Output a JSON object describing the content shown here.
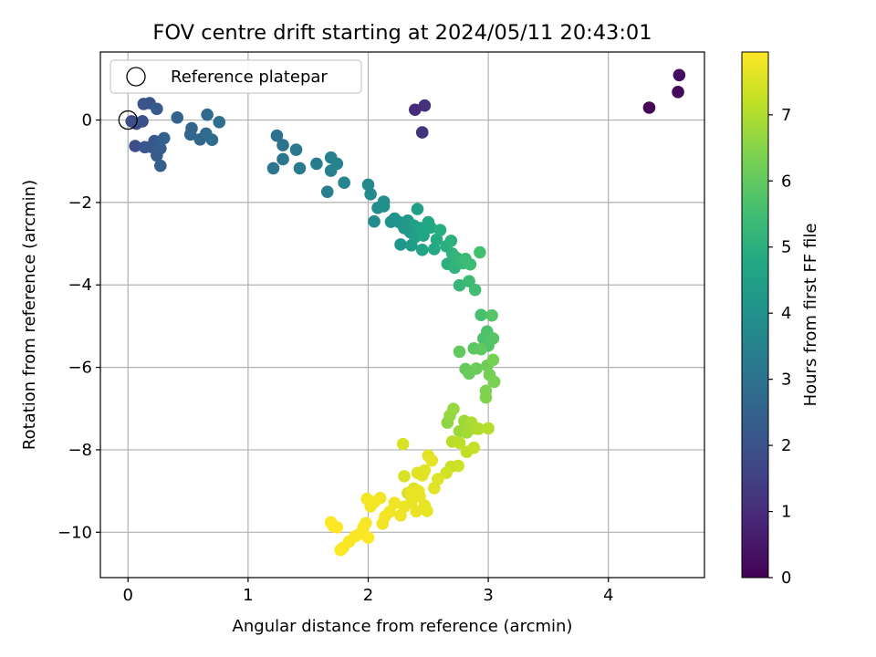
{
  "chart_data": {
    "type": "scatter",
    "title": "FOV centre drift starting at 2024/05/11 20:43:01",
    "xlabel": "Angular distance from reference (arcmin)",
    "ylabel": "Rotation from reference (arcmin)",
    "xlim": [
      -0.23,
      4.8
    ],
    "ylim": [
      -11.1,
      1.65
    ],
    "xticks": [
      0,
      1,
      2,
      3,
      4
    ],
    "yticks": [
      -10,
      -8,
      -6,
      -4,
      -2,
      0
    ],
    "xtick_labels": [
      "0",
      "1",
      "2",
      "3",
      "4"
    ],
    "ytick_labels": [
      "−10",
      "−8",
      "−6",
      "−4",
      "−2",
      "0"
    ],
    "grid": true,
    "legend": {
      "placement": "top-left",
      "entries": [
        "Reference platepar"
      ]
    },
    "reference_point": {
      "x": 0.0,
      "y": 0.0,
      "label": "Reference platepar"
    },
    "colorbar": {
      "label": "Hours from first FF file",
      "colormap": "viridis",
      "range": [
        0,
        7.95
      ],
      "ticks": [
        0,
        1,
        2,
        3,
        4,
        5,
        6,
        7
      ],
      "tick_labels": [
        "0",
        "1",
        "2",
        "3",
        "4",
        "5",
        "6",
        "7"
      ]
    },
    "series": [
      {
        "points": [
          [
            4.34,
            0.3,
            0.1
          ],
          [
            4.58,
            0.68,
            0.2
          ],
          [
            4.59,
            1.09,
            0.3
          ],
          [
            2.39,
            0.25,
            1.0
          ],
          [
            2.47,
            0.35,
            1.1
          ],
          [
            2.45,
            -0.3,
            1.2
          ],
          [
            0.03,
            -0.03,
            1.8
          ],
          [
            0.06,
            -0.63,
            1.85
          ],
          [
            0.07,
            -0.09,
            1.9
          ],
          [
            0.12,
            -0.03,
            1.95
          ],
          [
            0.13,
            0.39,
            2.0
          ],
          [
            0.18,
            0.41,
            2.05
          ],
          [
            0.14,
            -0.66,
            2.1
          ],
          [
            0.19,
            -0.65,
            2.15
          ],
          [
            0.22,
            -0.51,
            2.2
          ],
          [
            0.24,
            0.27,
            2.25
          ],
          [
            0.24,
            -0.86,
            2.3
          ],
          [
            0.27,
            -0.69,
            2.35
          ],
          [
            0.27,
            -1.11,
            2.4
          ],
          [
            0.3,
            -0.44,
            2.45
          ],
          [
            0.41,
            0.06,
            2.5
          ],
          [
            0.52,
            -0.35,
            2.55
          ],
          [
            0.53,
            -0.2,
            2.6
          ],
          [
            0.6,
            -0.47,
            2.65
          ],
          [
            0.66,
            0.13,
            2.7
          ],
          [
            0.65,
            -0.33,
            2.75
          ],
          [
            0.7,
            -0.48,
            2.8
          ],
          [
            0.76,
            -0.05,
            2.85
          ],
          [
            1.24,
            -0.38,
            3.0
          ],
          [
            1.29,
            -0.61,
            3.05
          ],
          [
            1.21,
            -1.17,
            3.1
          ],
          [
            1.29,
            -0.95,
            3.15
          ],
          [
            1.4,
            -0.72,
            3.2
          ],
          [
            1.43,
            -1.17,
            3.25
          ],
          [
            1.57,
            -1.06,
            3.3
          ],
          [
            1.66,
            -1.74,
            3.35
          ],
          [
            1.69,
            -0.91,
            3.4
          ],
          [
            1.69,
            -1.23,
            3.45
          ],
          [
            1.74,
            -1.06,
            3.5
          ],
          [
            1.8,
            -1.52,
            3.55
          ],
          [
            2.0,
            -1.57,
            3.7
          ],
          [
            2.02,
            -1.8,
            3.75
          ],
          [
            2.05,
            -2.46,
            3.8
          ],
          [
            2.08,
            -2.13,
            3.85
          ],
          [
            2.13,
            -1.98,
            3.9
          ],
          [
            2.13,
            -2.09,
            3.95
          ],
          [
            2.19,
            -2.47,
            4.0
          ],
          [
            2.22,
            -2.39,
            4.05
          ],
          [
            2.26,
            -2.48,
            4.1
          ],
          [
            2.27,
            -3.02,
            4.15
          ],
          [
            2.3,
            -2.62,
            4.2
          ],
          [
            2.33,
            -2.44,
            4.25
          ],
          [
            2.35,
            -2.72,
            4.3
          ],
          [
            2.36,
            -3.04,
            4.35
          ],
          [
            2.38,
            -2.56,
            4.4
          ],
          [
            2.39,
            -2.84,
            4.45
          ],
          [
            2.41,
            -2.16,
            4.5
          ],
          [
            2.43,
            -2.62,
            4.55
          ],
          [
            2.45,
            -3.15,
            4.6
          ],
          [
            2.46,
            -2.8,
            4.65
          ],
          [
            2.5,
            -2.48,
            4.7
          ],
          [
            2.52,
            -2.61,
            4.75
          ],
          [
            2.55,
            -3.13,
            4.8
          ],
          [
            2.57,
            -2.9,
            4.85
          ],
          [
            2.6,
            -2.67,
            4.9
          ],
          [
            2.65,
            -3.06,
            4.95
          ],
          [
            2.66,
            -3.49,
            5.0
          ],
          [
            2.69,
            -2.93,
            5.05
          ],
          [
            2.7,
            -3.24,
            5.1
          ],
          [
            2.72,
            -3.58,
            5.15
          ],
          [
            2.74,
            -3.35,
            5.2
          ],
          [
            2.76,
            -4.01,
            5.25
          ],
          [
            2.79,
            -3.47,
            5.3
          ],
          [
            2.81,
            -3.37,
            5.35
          ],
          [
            2.84,
            -3.91,
            5.4
          ],
          [
            2.85,
            -3.5,
            5.45
          ],
          [
            2.89,
            -4.12,
            5.5
          ],
          [
            2.93,
            -3.21,
            5.55
          ],
          [
            2.94,
            -4.73,
            5.6
          ],
          [
            2.96,
            -5.3,
            5.65
          ],
          [
            2.99,
            -5.13,
            5.7
          ],
          [
            3.0,
            -5.47,
            5.75
          ],
          [
            3.03,
            -4.74,
            5.8
          ],
          [
            3.04,
            -5.3,
            5.85
          ],
          [
            2.88,
            -5.54,
            5.9
          ],
          [
            2.94,
            -5.56,
            5.95
          ],
          [
            2.76,
            -5.62,
            6.0
          ],
          [
            2.81,
            -6.04,
            6.05
          ],
          [
            2.84,
            -6.15,
            6.1
          ],
          [
            2.9,
            -6.03,
            6.15
          ],
          [
            2.99,
            -5.96,
            6.2
          ],
          [
            3.01,
            -6.18,
            6.25
          ],
          [
            3.04,
            -5.82,
            6.3
          ],
          [
            3.05,
            -6.35,
            6.35
          ],
          [
            2.98,
            -6.57,
            6.4
          ],
          [
            2.98,
            -6.73,
            6.45
          ],
          [
            2.66,
            -7.34,
            6.6
          ],
          [
            2.68,
            -7.17,
            6.65
          ],
          [
            2.71,
            -7.01,
            6.7
          ],
          [
            2.76,
            -7.55,
            6.75
          ],
          [
            2.8,
            -7.3,
            6.8
          ],
          [
            2.82,
            -7.58,
            6.85
          ],
          [
            2.86,
            -7.34,
            6.9
          ],
          [
            2.89,
            -7.48,
            6.95
          ],
          [
            2.92,
            -7.49,
            7.0
          ],
          [
            3.0,
            -7.48,
            7.05
          ],
          [
            2.7,
            -7.8,
            7.1
          ],
          [
            2.76,
            -7.83,
            7.15
          ],
          [
            2.82,
            -8.05,
            7.2
          ],
          [
            2.88,
            -7.95,
            7.25
          ],
          [
            2.69,
            -8.41,
            7.3
          ],
          [
            2.75,
            -8.39,
            7.35
          ],
          [
            2.65,
            -8.56,
            7.4
          ],
          [
            2.29,
            -7.86,
            7.45
          ],
          [
            2.3,
            -8.64,
            7.5
          ],
          [
            2.33,
            -9.05,
            7.5
          ],
          [
            2.38,
            -8.94,
            7.55
          ],
          [
            2.41,
            -8.56,
            7.55
          ],
          [
            2.45,
            -8.62,
            7.6
          ],
          [
            2.47,
            -8.5,
            7.6
          ],
          [
            2.5,
            -8.14,
            7.6
          ],
          [
            2.53,
            -8.26,
            7.65
          ],
          [
            2.47,
            -9.35,
            7.65
          ],
          [
            2.49,
            -9.48,
            7.65
          ],
          [
            2.43,
            -9.13,
            7.7
          ],
          [
            2.4,
            -9.49,
            7.7
          ],
          [
            2.36,
            -9.05,
            7.7
          ],
          [
            2.3,
            -9.38,
            7.75
          ],
          [
            2.27,
            -9.59,
            7.75
          ],
          [
            2.22,
            -9.29,
            7.75
          ],
          [
            2.18,
            -9.5,
            7.8
          ],
          [
            2.14,
            -9.62,
            7.8
          ],
          [
            2.1,
            -9.17,
            7.8
          ],
          [
            2.12,
            -9.79,
            7.8
          ],
          [
            2.05,
            -9.27,
            7.85
          ],
          [
            2.02,
            -9.37,
            7.85
          ],
          [
            1.99,
            -9.19,
            7.85
          ],
          [
            1.98,
            -9.78,
            7.85
          ],
          [
            1.96,
            -9.88,
            7.9
          ],
          [
            1.93,
            -10.04,
            7.9
          ],
          [
            1.89,
            -10.1,
            7.9
          ],
          [
            1.84,
            -10.23,
            7.9
          ],
          [
            1.79,
            -10.38,
            7.9
          ],
          [
            1.77,
            -10.43,
            7.95
          ],
          [
            1.74,
            -9.88,
            7.95
          ],
          [
            1.71,
            -9.85,
            7.95
          ],
          [
            1.69,
            -9.76,
            7.95
          ],
          [
            2.0,
            -10.13,
            7.95
          ],
          [
            2.36,
            -9.28,
            7.7
          ],
          [
            2.42,
            -9.0,
            7.65
          ],
          [
            2.55,
            -8.93,
            7.6
          ],
          [
            2.58,
            -8.71,
            7.55
          ]
        ]
      }
    ]
  }
}
